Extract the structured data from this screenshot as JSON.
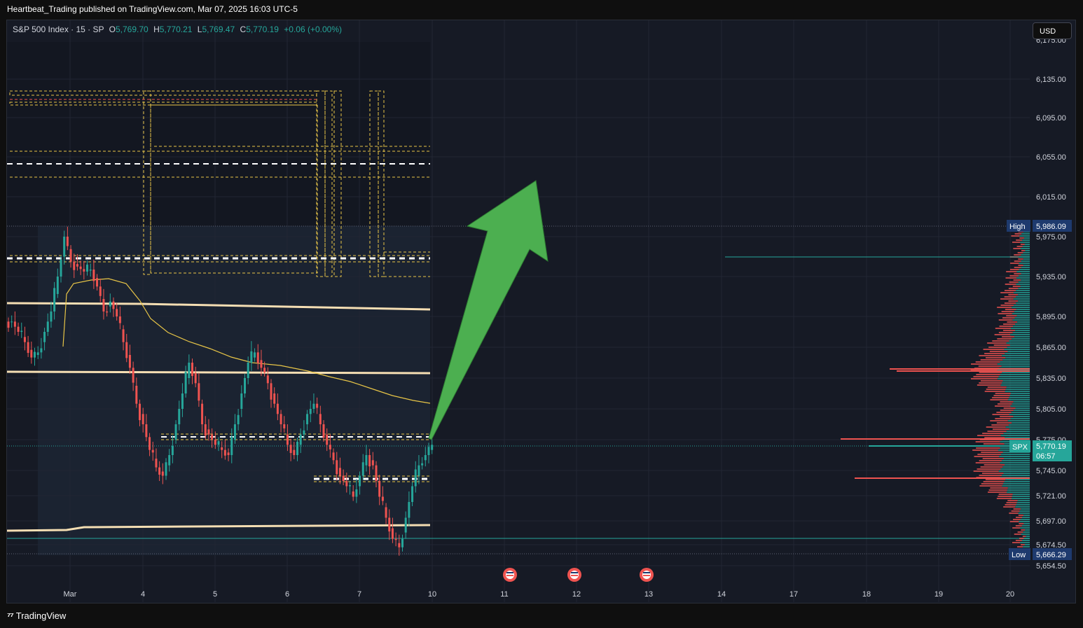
{
  "publish_line": "Heartbeat_Trading published on TradingView.com, Mar 07, 2025 16:03 UTC-5",
  "legend": {
    "symbol": "S&P 500 Index · 15 · SP",
    "open_label": "O",
    "open": "5,769.70",
    "high_label": "H",
    "high": "5,770.21",
    "low_label": "L",
    "low": "5,769.47",
    "close_label": "C",
    "close": "5,770.19",
    "change": "+0.06 (+0.00%)"
  },
  "currency_button": "USD",
  "price_axis": {
    "ticks": [
      "6,135.00",
      "6,095.00",
      "6,055.00",
      "6,015.00",
      "5,975.00",
      "5,935.00",
      "5,895.00",
      "5,865.00",
      "5,835.00",
      "5,805.00",
      "5,775.00",
      "5,745.00",
      "5,721.00",
      "5,697.00",
      "5,674.50",
      "5,654.50"
    ],
    "top_partial": "6,175.00"
  },
  "markers": {
    "high": {
      "label": "High",
      "price": "5,986.09"
    },
    "low": {
      "label": "Low",
      "price": "5,666.29"
    },
    "last": {
      "label": "SPX",
      "price": "5,770.19",
      "countdown": "06:57"
    }
  },
  "time_axis": [
    "Mar",
    "4",
    "5",
    "6",
    "7",
    "10",
    "11",
    "12",
    "13",
    "14",
    "17",
    "18",
    "19",
    "20"
  ],
  "event_icons": [
    "us-flag-icon",
    "us-flag-icon",
    "us-flag-icon"
  ],
  "footer": {
    "brand": "TradingView",
    "logo": "TV-logo-icon"
  },
  "colors": {
    "background": "#161a25",
    "up": "#26a69a",
    "down": "#ef5350",
    "arrow": "#4caf50",
    "band": "#f5deb3",
    "ma": "#e8c547",
    "box": "#e8c547",
    "high_tag": "#1e3a6e"
  },
  "chart_data": {
    "type": "candlestick",
    "symbol": "SPX",
    "interval": "15",
    "x_labels": [
      "Mar",
      "4",
      "5",
      "6",
      "7",
      "10",
      "11",
      "12",
      "13",
      "14",
      "17",
      "18",
      "19",
      "20"
    ],
    "ylim": [
      5650,
      6180
    ],
    "session_high": 5986.09,
    "session_low": 5666.29,
    "last_price": 5770.19,
    "price_path": [
      5890,
      5880,
      5870,
      5855,
      5860,
      5880,
      5900,
      5935,
      5975,
      5950,
      5945,
      5940,
      5942,
      5925,
      5900,
      5910,
      5895,
      5870,
      5845,
      5810,
      5790,
      5765,
      5748,
      5740,
      5760,
      5790,
      5820,
      5850,
      5830,
      5790,
      5780,
      5770,
      5765,
      5760,
      5790,
      5820,
      5850,
      5860,
      5845,
      5830,
      5810,
      5790,
      5770,
      5760,
      5780,
      5800,
      5810,
      5790,
      5770,
      5755,
      5740,
      5730,
      5720,
      5740,
      5760,
      5750,
      5720,
      5700,
      5680,
      5672,
      5700,
      5730,
      5750,
      5760,
      5770
    ],
    "projection_target": 6030
  }
}
